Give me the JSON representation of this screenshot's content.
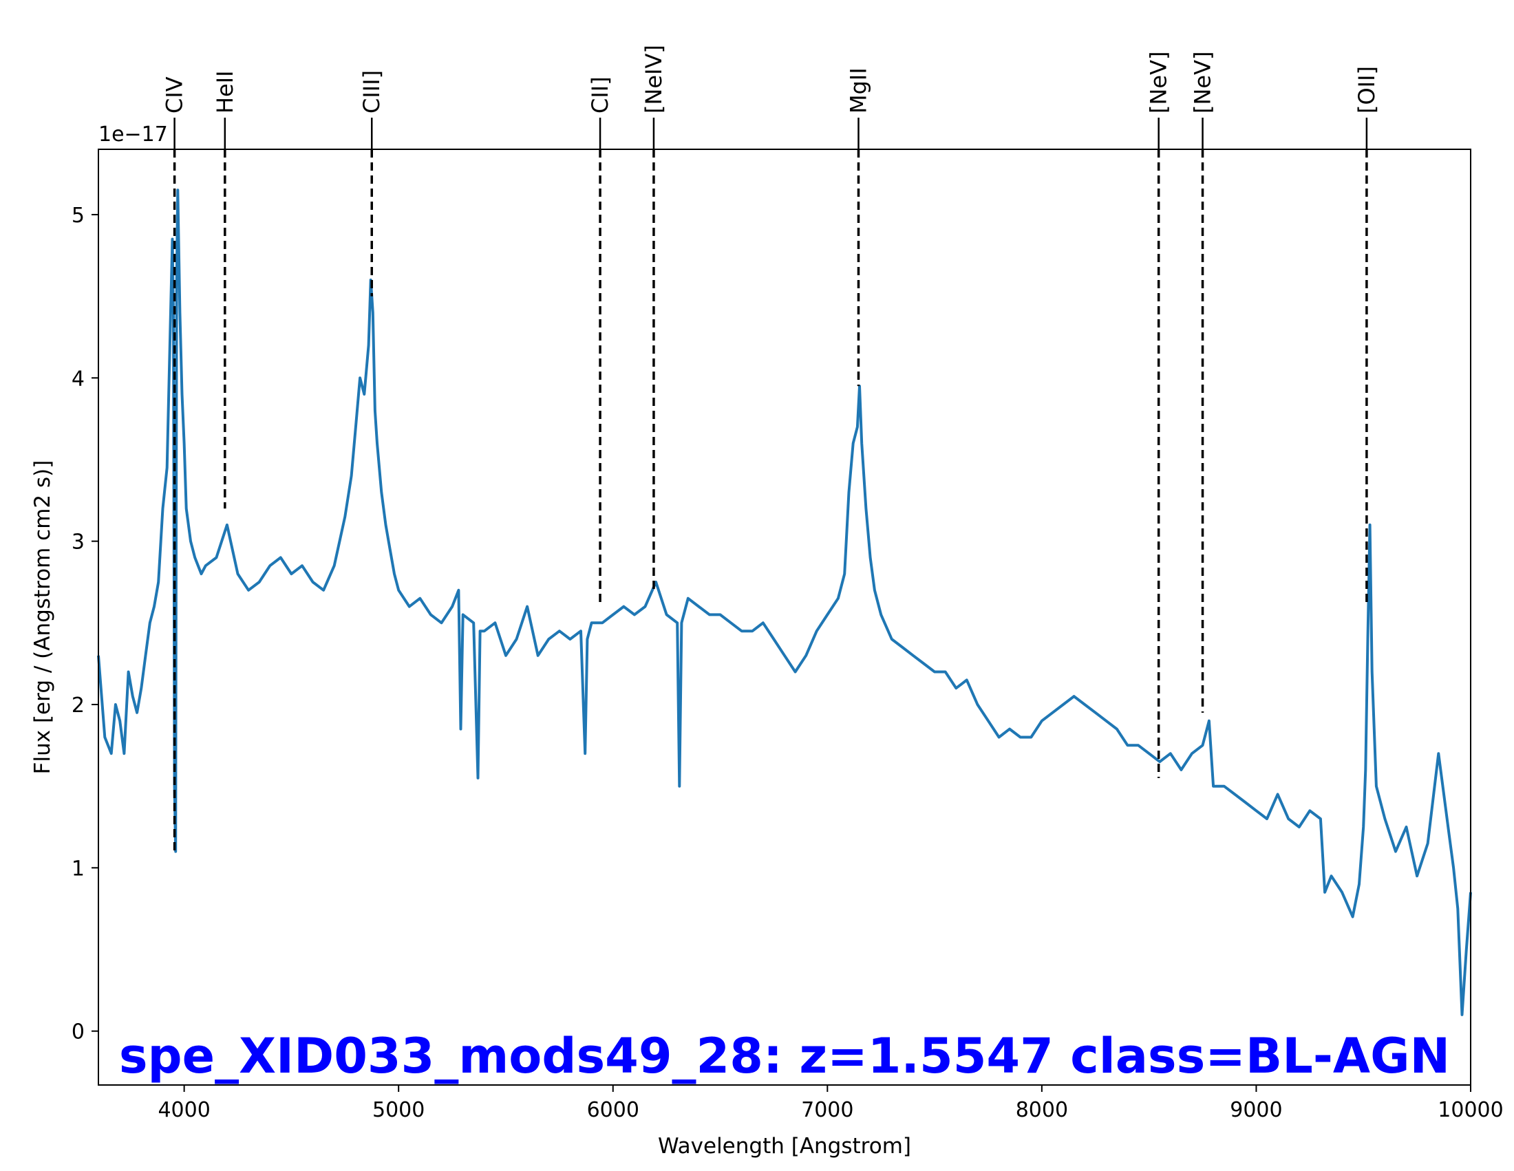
{
  "chart_data": {
    "type": "line",
    "title": "spe_XID033_mods49_28: z=1.5547 class=BL-AGN",
    "xlabel": "Wavelength [Angstrom]",
    "ylabel": "Flux [erg / (Angstrom cm2 s)]",
    "y_offset_label": "1e−17",
    "xlim": [
      3600,
      10000
    ],
    "ylim": [
      -0.33,
      5.4
    ],
    "x_ticks": [
      4000,
      5000,
      6000,
      7000,
      8000,
      9000,
      10000
    ],
    "x_tick_labels": [
      "4000",
      "5000",
      "6000",
      "7000",
      "8000",
      "9000",
      "10000"
    ],
    "y_ticks": [
      0,
      1,
      2,
      3,
      4,
      5
    ],
    "y_tick_labels": [
      "0",
      "1",
      "2",
      "3",
      "4",
      "5"
    ],
    "grid": false,
    "series": [
      {
        "color": "#1f77b4",
        "x": [
          3600,
          3630,
          3660,
          3680,
          3700,
          3720,
          3740,
          3760,
          3780,
          3800,
          3820,
          3840,
          3860,
          3880,
          3900,
          3920,
          3935,
          3945,
          3950,
          3955,
          3960,
          3965,
          3970,
          3980,
          3990,
          4000,
          4010,
          4030,
          4050,
          4080,
          4100,
          4150,
          4200,
          4250,
          4300,
          4350,
          4400,
          4450,
          4500,
          4550,
          4600,
          4650,
          4700,
          4750,
          4780,
          4800,
          4820,
          4840,
          4860,
          4870,
          4880,
          4890,
          4900,
          4920,
          4940,
          4960,
          4980,
          5000,
          5050,
          5100,
          5150,
          5200,
          5250,
          5280,
          5290,
          5300,
          5350,
          5370,
          5380,
          5400,
          5450,
          5500,
          5550,
          5600,
          5650,
          5700,
          5750,
          5800,
          5850,
          5870,
          5880,
          5900,
          5950,
          6000,
          6050,
          6100,
          6150,
          6200,
          6250,
          6300,
          6310,
          6320,
          6350,
          6400,
          6450,
          6500,
          6550,
          6600,
          6650,
          6700,
          6750,
          6800,
          6850,
          6900,
          6950,
          7000,
          7050,
          7080,
          7100,
          7120,
          7140,
          7150,
          7160,
          7180,
          7200,
          7220,
          7250,
          7300,
          7350,
          7400,
          7450,
          7500,
          7550,
          7600,
          7650,
          7700,
          7750,
          7800,
          7850,
          7900,
          7950,
          8000,
          8050,
          8100,
          8150,
          8200,
          8250,
          8300,
          8350,
          8400,
          8450,
          8500,
          8550,
          8600,
          8650,
          8700,
          8750,
          8780,
          8800,
          8850,
          8900,
          8950,
          9000,
          9050,
          9100,
          9150,
          9200,
          9250,
          9300,
          9320,
          9350,
          9400,
          9450,
          9480,
          9500,
          9510,
          9520,
          9530,
          9540,
          9560,
          9600,
          9650,
          9700,
          9750,
          9800,
          9850,
          9900,
          9920,
          9940,
          9960,
          9980,
          10000
        ],
        "y": [
          2.3,
          1.8,
          1.7,
          2.0,
          1.9,
          1.7,
          2.2,
          2.05,
          1.95,
          2.1,
          2.3,
          2.5,
          2.6,
          2.75,
          3.2,
          3.45,
          4.3,
          4.85,
          4.4,
          1.5,
          1.1,
          4.6,
          5.15,
          4.4,
          3.9,
          3.6,
          3.2,
          3.0,
          2.9,
          2.8,
          2.85,
          2.9,
          3.1,
          2.8,
          2.7,
          2.75,
          2.85,
          2.9,
          2.8,
          2.85,
          2.75,
          2.7,
          2.85,
          3.15,
          3.4,
          3.7,
          4.0,
          3.9,
          4.2,
          4.6,
          4.4,
          3.8,
          3.6,
          3.3,
          3.1,
          2.95,
          2.8,
          2.7,
          2.6,
          2.65,
          2.55,
          2.5,
          2.6,
          2.7,
          1.85,
          2.55,
          2.5,
          1.55,
          2.45,
          2.45,
          2.5,
          2.3,
          2.4,
          2.6,
          2.3,
          2.4,
          2.45,
          2.4,
          2.45,
          1.7,
          2.4,
          2.5,
          2.5,
          2.55,
          2.6,
          2.55,
          2.6,
          2.75,
          2.55,
          2.5,
          1.5,
          2.5,
          2.65,
          2.6,
          2.55,
          2.55,
          2.5,
          2.45,
          2.45,
          2.5,
          2.4,
          2.3,
          2.2,
          2.3,
          2.45,
          2.55,
          2.65,
          2.8,
          3.3,
          3.6,
          3.7,
          3.95,
          3.6,
          3.2,
          2.9,
          2.7,
          2.55,
          2.4,
          2.35,
          2.3,
          2.25,
          2.2,
          2.2,
          2.1,
          2.15,
          2.0,
          1.9,
          1.8,
          1.85,
          1.8,
          1.8,
          1.9,
          1.95,
          2.0,
          2.05,
          2.0,
          1.95,
          1.9,
          1.85,
          1.75,
          1.75,
          1.7,
          1.65,
          1.7,
          1.6,
          1.7,
          1.75,
          1.9,
          1.5,
          1.5,
          1.45,
          1.4,
          1.35,
          1.3,
          1.45,
          1.3,
          1.25,
          1.35,
          1.3,
          0.85,
          0.95,
          0.85,
          0.7,
          0.9,
          1.25,
          1.6,
          2.4,
          3.1,
          2.2,
          1.5,
          1.3,
          1.1,
          1.25,
          0.95,
          1.15,
          1.7,
          1.2,
          1.0,
          0.75,
          0.1,
          0.5,
          0.85
        ]
      }
    ],
    "emission_lines": [
      {
        "name": "CIV",
        "wavelength": 3955,
        "y_bottom": 1.1
      },
      {
        "name": "HeII",
        "wavelength": 4190,
        "y_bottom": 3.2
      },
      {
        "name": "CIII]",
        "wavelength": 4875,
        "y_bottom": 4.5
      },
      {
        "name": "CII]",
        "wavelength": 5940,
        "y_bottom": 2.6
      },
      {
        "name": "[NeIV]",
        "wavelength": 6190,
        "y_bottom": 2.7
      },
      {
        "name": "MgII",
        "wavelength": 7145,
        "y_bottom": 3.95
      },
      {
        "name": "[NeV]",
        "wavelength": 8545,
        "y_bottom": 1.55
      },
      {
        "name": "[NeV]",
        "wavelength": 8750,
        "y_bottom": 1.95
      },
      {
        "name": "[OII]",
        "wavelength": 9515,
        "y_bottom": 2.6
      }
    ]
  }
}
